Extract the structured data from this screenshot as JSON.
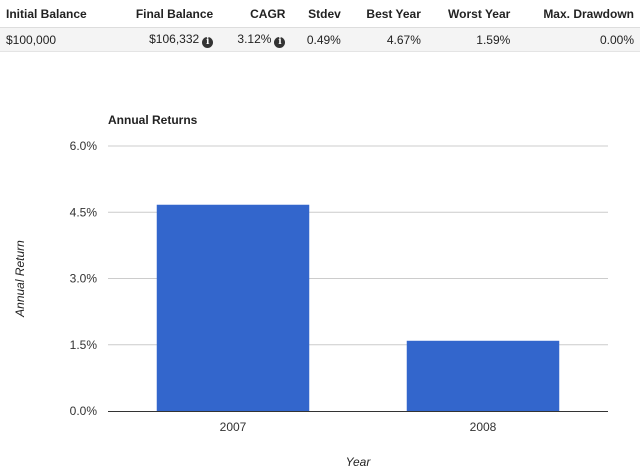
{
  "summary": {
    "headers": [
      "Initial Balance",
      "Final Balance",
      "CAGR",
      "Stdev",
      "Best Year",
      "Worst Year",
      "Max. Drawdown"
    ],
    "values": [
      "$100,000",
      "$106,332",
      "3.12%",
      "0.49%",
      "4.67%",
      "1.59%",
      "0.00%"
    ],
    "info_icon": "info-icon"
  },
  "chart_data": {
    "type": "bar",
    "title": "Annual Returns",
    "xlabel": "Year",
    "ylabel": "Annual Return",
    "categories": [
      "2007",
      "2008"
    ],
    "values": [
      4.67,
      1.59
    ],
    "ylim": [
      0,
      6
    ],
    "yticks": [
      0,
      1.5,
      3,
      4.5,
      6
    ],
    "ytick_labels": [
      "0.0%",
      "1.5%",
      "3.0%",
      "4.5%",
      "6.0%"
    ],
    "grid": true,
    "bar_color": "#3366cc"
  }
}
